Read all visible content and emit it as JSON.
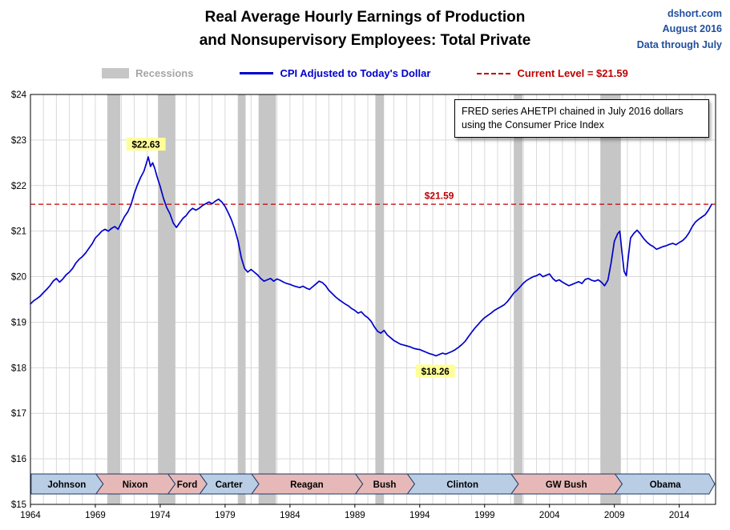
{
  "header": {
    "title_line1": "Real Average Hourly Earnings of Production",
    "title_line2": "and Nonsupervisory Employees: Total Private",
    "source": "dshort.com",
    "date": "August 2016",
    "through": "Data through July"
  },
  "legend": {
    "recessions": "Recessions",
    "series": "CPI Adjusted to Today's Dollar",
    "current": "Current Level = $21.59"
  },
  "note": {
    "line1": "FRED series AHETPI chained in July 2016 dollars",
    "line2": "using the Consumer Price Index"
  },
  "colors": {
    "line": "#0000cc",
    "current_level": "#c00000",
    "recession": "#c6c6c6",
    "grid": "#d9d9d9",
    "highlight_bg": "#ffff99",
    "dem_band": "#b9cde5",
    "rep_band": "#e6b9b8",
    "band_border": "#1f3864",
    "source_text": "#1f4e9e"
  },
  "chart_data": {
    "type": "line",
    "title": "Real Average Hourly Earnings of Production and Nonsupervisory Employees: Total Private",
    "xlabel": "",
    "ylabel": "",
    "x_range": [
      1964,
      2016.8
    ],
    "y_range": [
      15,
      24
    ],
    "x_ticks": [
      1964,
      1969,
      1974,
      1979,
      1984,
      1989,
      1994,
      1999,
      2004,
      2009,
      2014
    ],
    "y_ticks": [
      15,
      16,
      17,
      18,
      19,
      20,
      21,
      22,
      23,
      24
    ],
    "y_tick_labels": [
      "$15",
      "$16",
      "$17",
      "$18",
      "$19",
      "$20",
      "$21",
      "$22",
      "$23",
      "$24"
    ],
    "grid": true,
    "legend_position": "top",
    "current_level": 21.59,
    "annotations": [
      {
        "text": "$22.63",
        "x": 1972.9,
        "y": 22.9,
        "style": "highlight"
      },
      {
        "text": "$18.26",
        "x": 1995.2,
        "y": 17.92,
        "style": "highlight"
      },
      {
        "text": "$21.59",
        "x": 1995.5,
        "y": 21.78,
        "style": "current"
      }
    ],
    "recessions": [
      [
        1969.92,
        1970.92
      ],
      [
        1973.83,
        1975.17
      ],
      [
        1980.0,
        1980.58
      ],
      [
        1981.58,
        1982.92
      ],
      [
        1990.58,
        1991.25
      ],
      [
        2001.25,
        2001.92
      ],
      [
        2007.92,
        2009.5
      ]
    ],
    "presidents": [
      {
        "label": "Johnson",
        "start": 1964.05,
        "end": 1969.05,
        "party": "dem"
      },
      {
        "label": "Nixon",
        "start": 1969.05,
        "end": 1974.6,
        "party": "rep"
      },
      {
        "label": "Ford",
        "start": 1974.6,
        "end": 1977.05,
        "party": "rep"
      },
      {
        "label": "Carter",
        "start": 1977.05,
        "end": 1981.05,
        "party": "dem"
      },
      {
        "label": "Reagan",
        "start": 1981.05,
        "end": 1989.05,
        "party": "rep"
      },
      {
        "label": "Bush",
        "start": 1989.05,
        "end": 1993.05,
        "party": "rep"
      },
      {
        "label": "Clinton",
        "start": 1993.05,
        "end": 2001.05,
        "party": "dem"
      },
      {
        "label": "GW Bush",
        "start": 2001.05,
        "end": 2009.05,
        "party": "rep"
      },
      {
        "label": "Obama",
        "start": 2009.05,
        "end": 2016.3,
        "party": "dem"
      }
    ],
    "series": [
      {
        "name": "CPI Adjusted to Today's Dollar",
        "points": [
          [
            1964.0,
            19.4
          ],
          [
            1964.25,
            19.47
          ],
          [
            1964.5,
            19.52
          ],
          [
            1964.75,
            19.57
          ],
          [
            1965.0,
            19.65
          ],
          [
            1965.25,
            19.72
          ],
          [
            1965.5,
            19.8
          ],
          [
            1965.75,
            19.9
          ],
          [
            1966.0,
            19.96
          ],
          [
            1966.25,
            19.88
          ],
          [
            1966.5,
            19.95
          ],
          [
            1966.75,
            20.04
          ],
          [
            1967.0,
            20.1
          ],
          [
            1967.25,
            20.18
          ],
          [
            1967.5,
            20.3
          ],
          [
            1967.75,
            20.38
          ],
          [
            1968.0,
            20.44
          ],
          [
            1968.25,
            20.52
          ],
          [
            1968.5,
            20.62
          ],
          [
            1968.75,
            20.72
          ],
          [
            1969.0,
            20.85
          ],
          [
            1969.25,
            20.92
          ],
          [
            1969.5,
            21.0
          ],
          [
            1969.75,
            21.04
          ],
          [
            1970.0,
            21.0
          ],
          [
            1970.25,
            21.06
          ],
          [
            1970.5,
            21.1
          ],
          [
            1970.75,
            21.04
          ],
          [
            1971.0,
            21.18
          ],
          [
            1971.25,
            21.32
          ],
          [
            1971.5,
            21.42
          ],
          [
            1971.75,
            21.58
          ],
          [
            1972.0,
            21.82
          ],
          [
            1972.25,
            22.02
          ],
          [
            1972.5,
            22.18
          ],
          [
            1972.75,
            22.32
          ],
          [
            1973.0,
            22.55
          ],
          [
            1973.08,
            22.63
          ],
          [
            1973.17,
            22.52
          ],
          [
            1973.25,
            22.42
          ],
          [
            1973.42,
            22.5
          ],
          [
            1973.58,
            22.38
          ],
          [
            1973.75,
            22.2
          ],
          [
            1974.0,
            21.98
          ],
          [
            1974.25,
            21.72
          ],
          [
            1974.5,
            21.52
          ],
          [
            1974.75,
            21.38
          ],
          [
            1975.0,
            21.18
          ],
          [
            1975.25,
            21.08
          ],
          [
            1975.5,
            21.18
          ],
          [
            1975.75,
            21.28
          ],
          [
            1976.0,
            21.34
          ],
          [
            1976.25,
            21.44
          ],
          [
            1976.5,
            21.5
          ],
          [
            1976.75,
            21.46
          ],
          [
            1977.0,
            21.5
          ],
          [
            1977.25,
            21.56
          ],
          [
            1977.5,
            21.6
          ],
          [
            1977.75,
            21.64
          ],
          [
            1978.0,
            21.6
          ],
          [
            1978.25,
            21.66
          ],
          [
            1978.5,
            21.7
          ],
          [
            1978.75,
            21.64
          ],
          [
            1979.0,
            21.54
          ],
          [
            1979.25,
            21.4
          ],
          [
            1979.5,
            21.24
          ],
          [
            1979.75,
            21.04
          ],
          [
            1980.0,
            20.78
          ],
          [
            1980.25,
            20.42
          ],
          [
            1980.5,
            20.18
          ],
          [
            1980.75,
            20.1
          ],
          [
            1981.0,
            20.16
          ],
          [
            1981.25,
            20.1
          ],
          [
            1981.5,
            20.04
          ],
          [
            1981.75,
            19.96
          ],
          [
            1982.0,
            19.9
          ],
          [
            1982.25,
            19.93
          ],
          [
            1982.5,
            19.96
          ],
          [
            1982.75,
            19.9
          ],
          [
            1983.0,
            19.95
          ],
          [
            1983.25,
            19.92
          ],
          [
            1983.5,
            19.88
          ],
          [
            1983.75,
            19.85
          ],
          [
            1984.0,
            19.83
          ],
          [
            1984.25,
            19.8
          ],
          [
            1984.5,
            19.78
          ],
          [
            1984.75,
            19.76
          ],
          [
            1985.0,
            19.79
          ],
          [
            1985.25,
            19.75
          ],
          [
            1985.5,
            19.72
          ],
          [
            1985.75,
            19.78
          ],
          [
            1986.0,
            19.84
          ],
          [
            1986.25,
            19.9
          ],
          [
            1986.5,
            19.87
          ],
          [
            1986.75,
            19.8
          ],
          [
            1987.0,
            19.7
          ],
          [
            1987.25,
            19.63
          ],
          [
            1987.5,
            19.56
          ],
          [
            1987.75,
            19.5
          ],
          [
            1988.0,
            19.45
          ],
          [
            1988.25,
            19.4
          ],
          [
            1988.5,
            19.36
          ],
          [
            1988.75,
            19.3
          ],
          [
            1989.0,
            19.26
          ],
          [
            1989.25,
            19.2
          ],
          [
            1989.5,
            19.23
          ],
          [
            1989.75,
            19.15
          ],
          [
            1990.0,
            19.1
          ],
          [
            1990.25,
            19.02
          ],
          [
            1990.5,
            18.9
          ],
          [
            1990.75,
            18.8
          ],
          [
            1991.0,
            18.76
          ],
          [
            1991.25,
            18.82
          ],
          [
            1991.5,
            18.72
          ],
          [
            1991.75,
            18.66
          ],
          [
            1992.0,
            18.6
          ],
          [
            1992.25,
            18.56
          ],
          [
            1992.5,
            18.52
          ],
          [
            1992.75,
            18.5
          ],
          [
            1993.0,
            18.48
          ],
          [
            1993.25,
            18.46
          ],
          [
            1993.5,
            18.43
          ],
          [
            1993.75,
            18.41
          ],
          [
            1994.0,
            18.4
          ],
          [
            1994.25,
            18.37
          ],
          [
            1994.5,
            18.34
          ],
          [
            1994.75,
            18.31
          ],
          [
            1995.0,
            18.29
          ],
          [
            1995.25,
            18.26
          ],
          [
            1995.5,
            18.29
          ],
          [
            1995.75,
            18.32
          ],
          [
            1996.0,
            18.3
          ],
          [
            1996.25,
            18.33
          ],
          [
            1996.5,
            18.36
          ],
          [
            1996.75,
            18.4
          ],
          [
            1997.0,
            18.45
          ],
          [
            1997.25,
            18.51
          ],
          [
            1997.5,
            18.58
          ],
          [
            1997.75,
            18.68
          ],
          [
            1998.0,
            18.78
          ],
          [
            1998.25,
            18.87
          ],
          [
            1998.5,
            18.95
          ],
          [
            1998.75,
            19.03
          ],
          [
            1999.0,
            19.1
          ],
          [
            1999.25,
            19.15
          ],
          [
            1999.5,
            19.2
          ],
          [
            1999.75,
            19.26
          ],
          [
            2000.0,
            19.3
          ],
          [
            2000.25,
            19.34
          ],
          [
            2000.5,
            19.38
          ],
          [
            2000.75,
            19.45
          ],
          [
            2001.0,
            19.54
          ],
          [
            2001.25,
            19.64
          ],
          [
            2001.5,
            19.7
          ],
          [
            2001.75,
            19.78
          ],
          [
            2002.0,
            19.86
          ],
          [
            2002.25,
            19.92
          ],
          [
            2002.5,
            19.96
          ],
          [
            2002.75,
            20.0
          ],
          [
            2003.0,
            20.02
          ],
          [
            2003.25,
            20.06
          ],
          [
            2003.5,
            20.0
          ],
          [
            2003.75,
            20.03
          ],
          [
            2004.0,
            20.06
          ],
          [
            2004.25,
            19.96
          ],
          [
            2004.5,
            19.9
          ],
          [
            2004.75,
            19.93
          ],
          [
            2005.0,
            19.88
          ],
          [
            2005.25,
            19.84
          ],
          [
            2005.5,
            19.8
          ],
          [
            2005.75,
            19.83
          ],
          [
            2006.0,
            19.86
          ],
          [
            2006.25,
            19.89
          ],
          [
            2006.5,
            19.85
          ],
          [
            2006.75,
            19.94
          ],
          [
            2007.0,
            19.96
          ],
          [
            2007.25,
            19.92
          ],
          [
            2007.5,
            19.9
          ],
          [
            2007.75,
            19.93
          ],
          [
            2008.0,
            19.88
          ],
          [
            2008.25,
            19.8
          ],
          [
            2008.5,
            19.92
          ],
          [
            2008.75,
            20.3
          ],
          [
            2009.0,
            20.78
          ],
          [
            2009.25,
            20.94
          ],
          [
            2009.42,
            21.0
          ],
          [
            2009.58,
            20.55
          ],
          [
            2009.75,
            20.12
          ],
          [
            2009.92,
            20.02
          ],
          [
            2010.08,
            20.45
          ],
          [
            2010.25,
            20.85
          ],
          [
            2010.5,
            20.95
          ],
          [
            2010.75,
            21.02
          ],
          [
            2011.0,
            20.94
          ],
          [
            2011.25,
            20.84
          ],
          [
            2011.5,
            20.76
          ],
          [
            2011.75,
            20.7
          ],
          [
            2012.0,
            20.66
          ],
          [
            2012.25,
            20.6
          ],
          [
            2012.5,
            20.63
          ],
          [
            2012.75,
            20.66
          ],
          [
            2013.0,
            20.68
          ],
          [
            2013.25,
            20.71
          ],
          [
            2013.5,
            20.73
          ],
          [
            2013.75,
            20.7
          ],
          [
            2014.0,
            20.75
          ],
          [
            2014.25,
            20.79
          ],
          [
            2014.5,
            20.86
          ],
          [
            2014.75,
            20.96
          ],
          [
            2015.0,
            21.1
          ],
          [
            2015.25,
            21.2
          ],
          [
            2015.5,
            21.26
          ],
          [
            2015.75,
            21.31
          ],
          [
            2016.0,
            21.36
          ],
          [
            2016.25,
            21.46
          ],
          [
            2016.5,
            21.59
          ]
        ]
      }
    ]
  }
}
